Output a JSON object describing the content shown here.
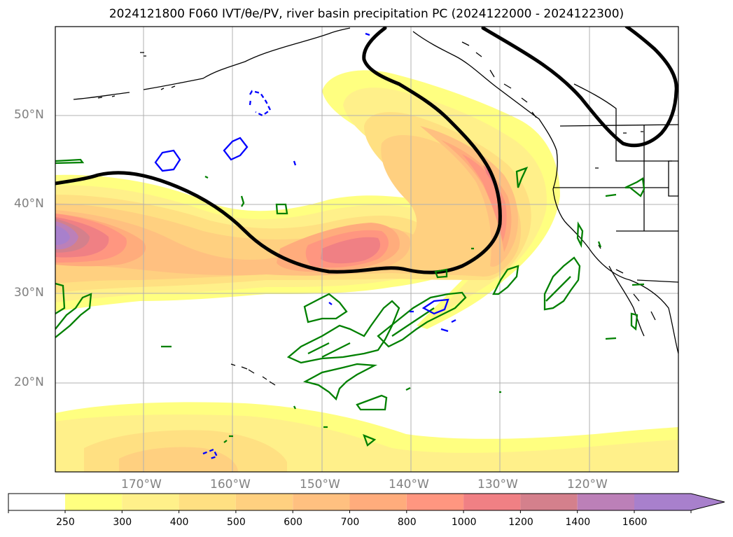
{
  "title": "2024121800 F060 IVT/θe/PV, river basin precipitation PC (2024122000 - 2024122300)",
  "lat_labels": [
    "50°N",
    "40°N",
    "30°N",
    "20°N"
  ],
  "lon_labels": [
    "170°W",
    "160°W",
    "150°W",
    "140°W",
    "130°W",
    "120°W"
  ],
  "colorbar": {
    "labels": [
      "250",
      "300",
      "400",
      "500",
      "600",
      "700",
      "800",
      "1000",
      "1200",
      "1400",
      "1600"
    ],
    "colors": [
      "#ffff80",
      "#fff08a",
      "#ffe082",
      "#ffd080",
      "#ffc080",
      "#ffac7c",
      "#ff9680",
      "#f08084",
      "#d4808c",
      "#bc80b8",
      "#a880cc"
    ],
    "extend": "max"
  },
  "colors": {
    "grid": "#b0b0b0",
    "coast": "#000000",
    "contour_black": "#000000",
    "contour_green": "#008000",
    "contour_blue": "#0000ff",
    "axis_label": "#808080"
  }
}
